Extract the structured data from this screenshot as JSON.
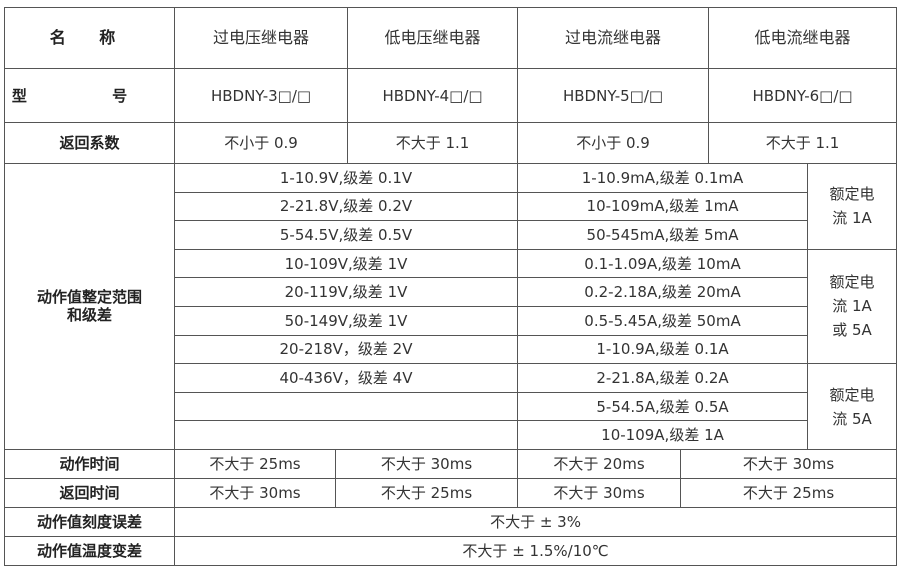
{
  "header": {
    "name_label": "名 称",
    "types": [
      "过电压继电器",
      "低电压继电器",
      "过电流继电器",
      "低电流继电器"
    ]
  },
  "model": {
    "label": "型 号",
    "values": [
      "HBDNY-3□/□",
      "HBDNY-4□/□",
      "HBDNY-5□/□",
      "HBDNY-6□/□"
    ]
  },
  "return_coef": {
    "label": "返回系数",
    "values": [
      "不小于 0.9",
      "不大于 1.1",
      "不小于 0.9",
      "不大于 1.1"
    ]
  },
  "range": {
    "label_line1": "动作值整定范围",
    "label_line2": "和级差",
    "voltage": [
      "1-10.9V,级差 0.1V",
      "2-21.8V,级差 0.2V",
      "5-54.5V,级差 0.5V",
      "10-109V,级差 1V",
      "20-119V,级差 1V",
      "50-149V,级差 1V",
      "20-218V，级差 2V",
      "40-436V，级差 4V",
      "",
      ""
    ],
    "current": [
      "1-10.9mA,级差 0.1mA",
      "10-109mA,级差 1mA",
      "50-545mA,级差 5mA",
      "0.1-1.09A,级差 10mA",
      "0.2-2.18A,级差 20mA",
      "0.5-5.45A,级差 50mA",
      "1-10.9A,级差 0.1A",
      "2-21.8A,级差 0.2A",
      "5-54.5A,级差 0.5A",
      "10-109A,级差 1A"
    ],
    "rated": [
      {
        "line1": "额定电",
        "line2": "流 1A",
        "line3": ""
      },
      {
        "line1": "额定电",
        "line2": "流 1A",
        "line3": "或 5A"
      },
      {
        "line1": "额定电",
        "line2": "流 5A",
        "line3": ""
      }
    ]
  },
  "action_time": {
    "label": "动作时间",
    "values": [
      "不大于 25ms",
      "不大于 30ms",
      "不大于 20ms",
      "不大于 30ms"
    ]
  },
  "return_time": {
    "label": "返回时间",
    "values": [
      "不大于 30ms",
      "不大于 25ms",
      "不大于 30ms",
      "不大于 25ms"
    ]
  },
  "scale_error": {
    "label": "动作值刻度误差",
    "value": "不大于 ± 3%"
  },
  "temp_variation": {
    "label": "动作值温度变差",
    "value": "不大于 ± 1.5%/10℃"
  }
}
